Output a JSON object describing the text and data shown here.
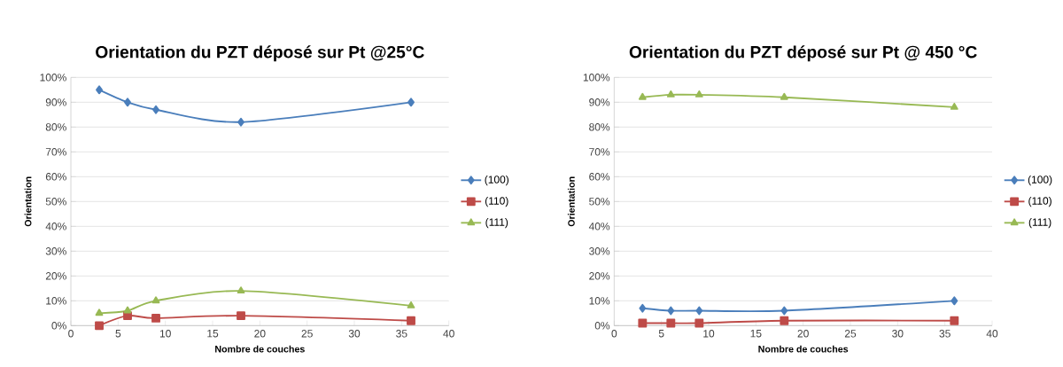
{
  "chart_data": [
    {
      "type": "line",
      "title": "Orientation du PZT déposé sur Pt @25°C",
      "xlabel": "Nombre de couches",
      "ylabel": "Orientation",
      "x": [
        3,
        6,
        9,
        18,
        36
      ],
      "series": [
        {
          "name": "(100)",
          "color": "#4a7ebb",
          "marker": "diamond",
          "values": [
            95,
            90,
            87,
            82,
            90
          ]
        },
        {
          "name": "(110)",
          "color": "#be4b48",
          "marker": "square",
          "values": [
            0,
            4,
            3,
            4,
            2
          ]
        },
        {
          "name": "(111)",
          "color": "#98b954",
          "marker": "triangle",
          "values": [
            5,
            6,
            10,
            14,
            8
          ]
        }
      ],
      "xlim": [
        0,
        40
      ],
      "xticks": [
        0,
        5,
        10,
        15,
        20,
        25,
        30,
        35,
        40
      ],
      "ylim": [
        0,
        100
      ],
      "yticks": [
        {
          "value": 0,
          "label": "0%"
        },
        {
          "value": 10,
          "label": "10%"
        },
        {
          "value": 20,
          "label": "20%"
        },
        {
          "value": 30,
          "label": "30%"
        },
        {
          "value": 40,
          "label": "40%"
        },
        {
          "value": 50,
          "label": "50%"
        },
        {
          "value": 60,
          "label": "60%"
        },
        {
          "value": 70,
          "label": "70%"
        },
        {
          "value": 80,
          "label": "80%"
        },
        {
          "value": 90,
          "label": "90%"
        },
        {
          "value": 100,
          "label": "100%"
        }
      ],
      "grid": "y",
      "legend": "right",
      "line_style": "solid"
    },
    {
      "type": "line",
      "title": "Orientation du PZT déposé sur Pt @ 450 °C",
      "xlabel": "Nombre de couches",
      "ylabel": "Orientation",
      "x": [
        3,
        6,
        9,
        18,
        36
      ],
      "series": [
        {
          "name": "(100)",
          "color": "#4a7ebb",
          "marker": "diamond",
          "values": [
            7,
            6,
            6,
            6,
            10
          ]
        },
        {
          "name": "(110)",
          "color": "#be4b48",
          "marker": "square",
          "values": [
            1,
            1,
            1,
            2,
            2
          ]
        },
        {
          "name": "(111)",
          "color": "#98b954",
          "marker": "triangle",
          "values": [
            92,
            93,
            93,
            92,
            88
          ]
        }
      ],
      "xlim": [
        0,
        40
      ],
      "xticks": [
        0,
        5,
        10,
        15,
        20,
        25,
        30,
        35,
        40
      ],
      "ylim": [
        0,
        100
      ],
      "yticks": [
        {
          "value": 0,
          "label": "0%"
        },
        {
          "value": 10,
          "label": "10%"
        },
        {
          "value": 20,
          "label": "20%"
        },
        {
          "value": 30,
          "label": "30%"
        },
        {
          "value": 40,
          "label": "40%"
        },
        {
          "value": 50,
          "label": "50%"
        },
        {
          "value": 60,
          "label": "60%"
        },
        {
          "value": 70,
          "label": "70%"
        },
        {
          "value": 80,
          "label": "80%"
        },
        {
          "value": 90,
          "label": "90%"
        },
        {
          "value": 100,
          "label": "100%"
        }
      ],
      "grid": "y",
      "legend": "right",
      "line_style": "solid"
    }
  ]
}
